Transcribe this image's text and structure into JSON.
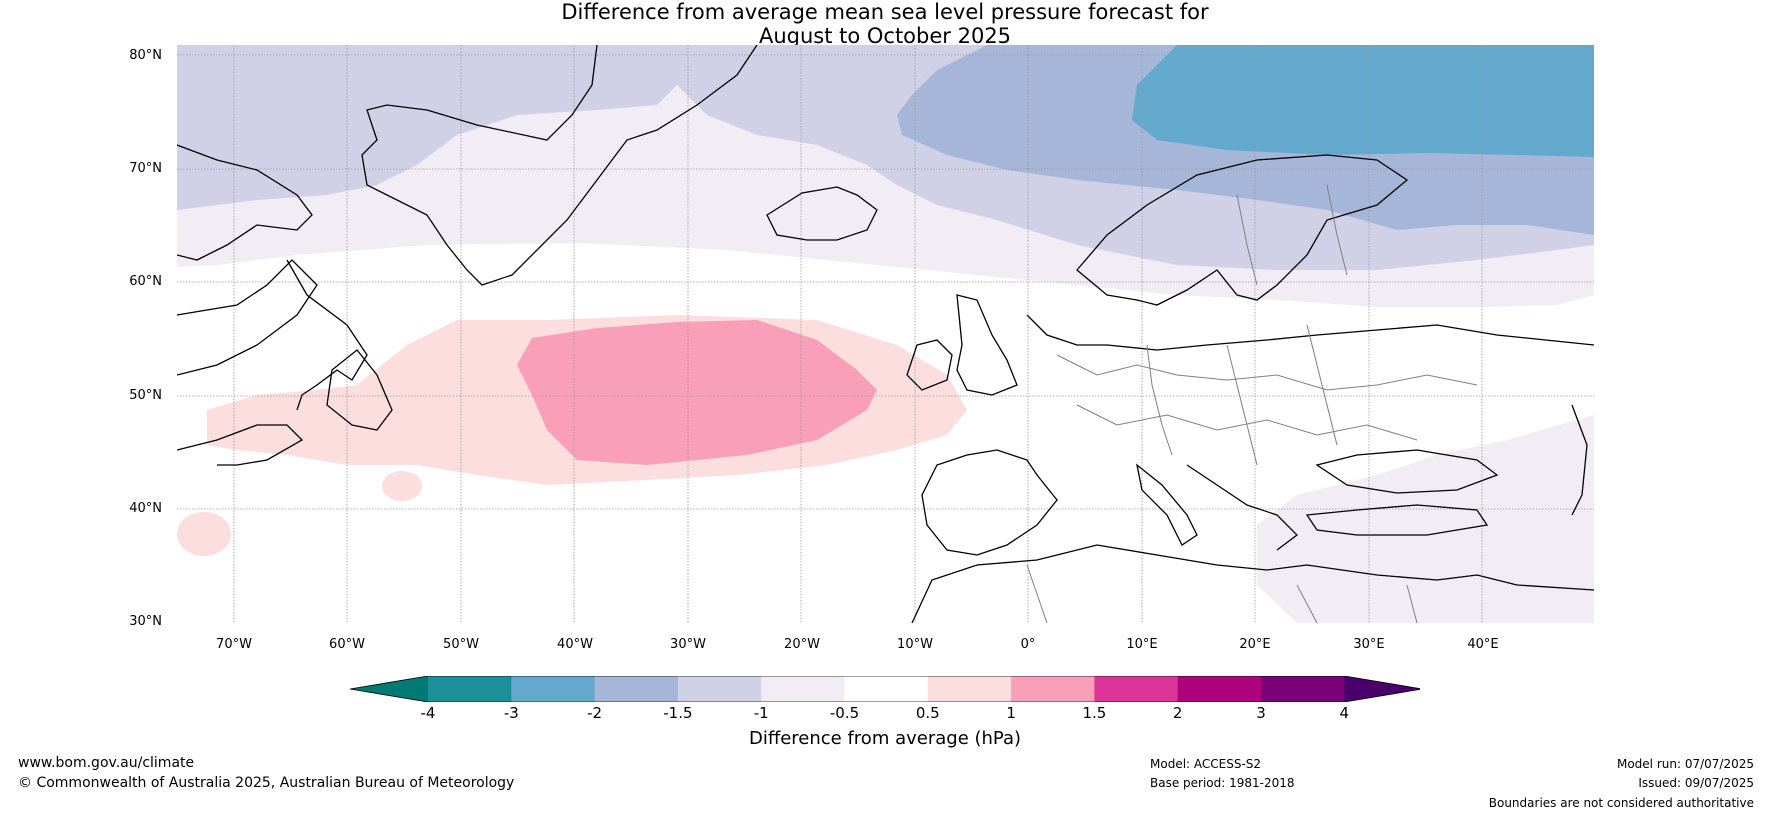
{
  "title": {
    "line1": "Difference from average mean sea level pressure forecast for",
    "line2": "August to October 2025"
  },
  "map": {
    "lat_labels": [
      "80°N",
      "70°N",
      "60°N",
      "50°N",
      "40°N",
      "30°N"
    ],
    "lon_labels": [
      "70°W",
      "60°W",
      "50°W",
      "40°W",
      "30°W",
      "20°W",
      "10°W",
      "0°",
      "10°E",
      "20°E",
      "30°E",
      "40°E"
    ],
    "extent": {
      "lon_min": -75,
      "lon_max": 50,
      "lat_min": 30,
      "lat_max": 81
    },
    "colors": {
      "lt_-2": "#62a9cd",
      "-2_-1.5": "#a5b6d8",
      "-1.5_-1": "#d0d1e6",
      "-1_-0.5": "#f2ecf5",
      "-0.5_0.5": "#ffffff",
      "0.5_1": "#fddede",
      "1_1.5": "#f99fb9"
    }
  },
  "colorbar": {
    "ticks": [
      "-4",
      "-3",
      "-2",
      "-1.5",
      "-1",
      "-0.5",
      "0.5",
      "1",
      "1.5",
      "2",
      "3",
      "4"
    ],
    "colors": [
      "#007a73",
      "#1b9098",
      "#62a9cd",
      "#a5b6d8",
      "#d0d1e6",
      "#f2ecf5",
      "#ffffff",
      "#fddede",
      "#f99fb9",
      "#dd3497",
      "#ae017e",
      "#7a0177",
      "#49006a"
    ],
    "label": "Difference from average (hPa)"
  },
  "footer": {
    "website": "www.bom.gov.au/climate",
    "copyright": "© Commonwealth of Australia 2025, Australian Bureau of Meteorology",
    "model": "Model: ACCESS-S2",
    "base_period": "Base period: 1981-2018",
    "model_run": "Model run: 07/07/2025",
    "issued": "Issued: 09/07/2025",
    "disclaimer": "Boundaries are not considered authoritative"
  }
}
